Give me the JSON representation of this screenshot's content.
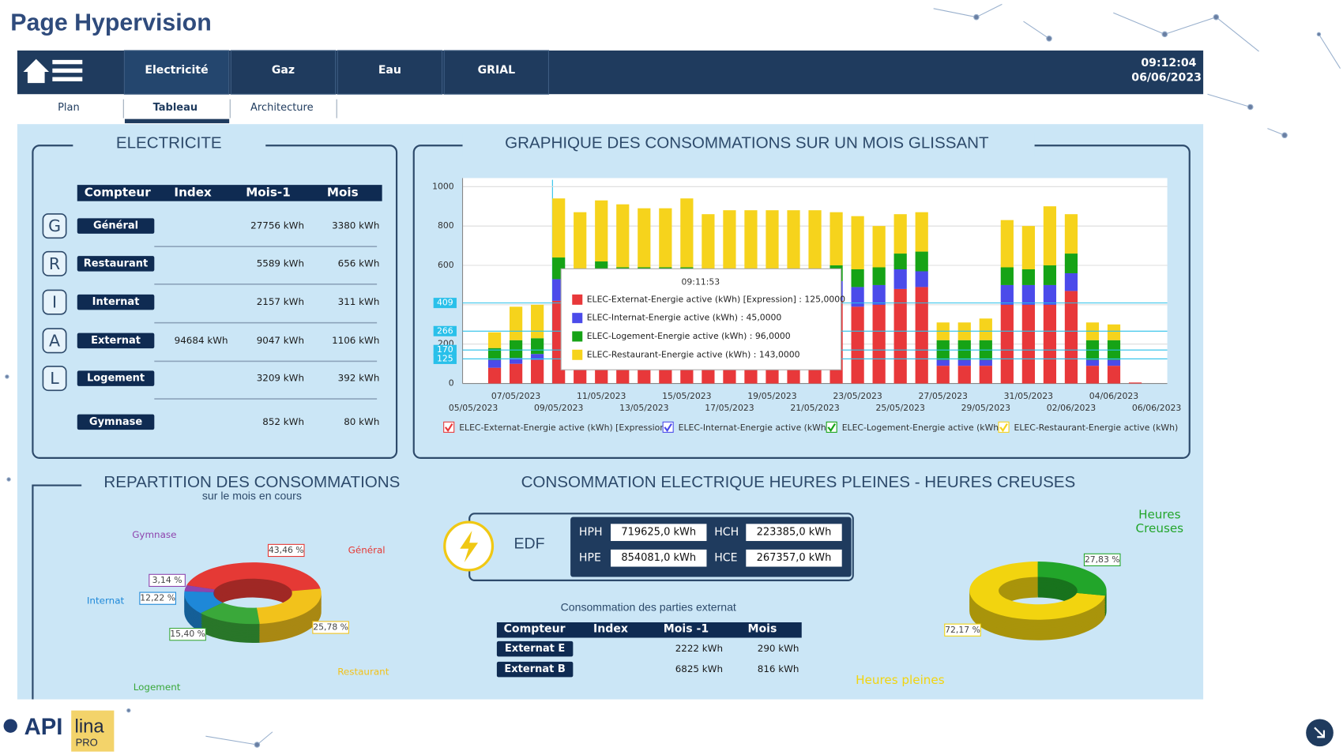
{
  "header": {
    "title": "Page Hypervision"
  },
  "nav": {
    "tabs": [
      "Electricité",
      "Gaz",
      "Eau",
      "GRIAL"
    ],
    "subtabs": [
      "Plan",
      "Tableau",
      "Architecture"
    ],
    "time": "09:12:04",
    "date": "06/06/2023"
  },
  "electricite": {
    "title": "ELECTRICITE",
    "columns": [
      "Compteur",
      "Index",
      "Mois-1",
      "Mois"
    ],
    "rows": [
      {
        "letter": "G",
        "name": "Général",
        "prev": "27756 kWh",
        "cur": "3380 kWh"
      },
      {
        "letter": "R",
        "name": "Restaurant",
        "prev": "5589 kWh",
        "cur": "656 kWh"
      },
      {
        "letter": "I",
        "name": "Internat",
        "prev": "2157 kWh",
        "cur": "311 kWh"
      },
      {
        "letter": "A",
        "name": "Externat",
        "index": "94684 kWh",
        "prev": "9047 kWh",
        "cur": "1106 kWh"
      },
      {
        "letter": "L",
        "name": "Logement",
        "prev": "3209 kWh",
        "cur": "392 kWh"
      },
      {
        "name": "Gymnase",
        "prev": "852 kWh",
        "cur": "80 kWh"
      }
    ]
  },
  "bar_chart": {
    "type": "bar",
    "title": "GRAPHIQUE DES CONSOMMATIONS SUR UN MOIS GLISSANT",
    "categories": [
      "05/05/2023",
      null,
      "07/05/2023",
      null,
      "09/05/2023",
      null,
      "11/05/2023",
      null,
      "13/05/2023",
      null,
      "15/05/2023",
      null,
      "17/05/2023",
      null,
      "19/05/2023",
      null,
      "21/05/2023",
      null,
      "23/05/2023",
      null,
      "25/05/2023",
      null,
      "27/05/2023",
      null,
      "29/05/2023",
      null,
      "31/05/2023",
      null,
      "02/06/2023",
      null,
      "04/06/2023",
      null,
      "06/06/2023"
    ],
    "series": [
      {
        "name": "ELEC-Externat-Energie active (kWh) [Expression]",
        "color": "#e8383a",
        "values": [
          0,
          80,
          100,
          120,
          420,
          400,
          400,
          400,
          400,
          400,
          400,
          400,
          420,
          420,
          420,
          420,
          420,
          420,
          390,
          400,
          480,
          490,
          90,
          90,
          90,
          400,
          400,
          400,
          470,
          90,
          90,
          5,
          0
        ]
      },
      {
        "name": "ELEC-Internat-Energie active (kWh)",
        "color": "#4b4bea",
        "values": [
          0,
          40,
          30,
          30,
          110,
          110,
          110,
          110,
          110,
          110,
          110,
          110,
          100,
          100,
          100,
          100,
          100,
          100,
          100,
          100,
          100,
          80,
          30,
          30,
          30,
          100,
          100,
          100,
          90,
          30,
          30,
          0,
          0
        ]
      },
      {
        "name": "ELEC-Logement-Energie active (kWh)",
        "color": "#16a316",
        "values": [
          0,
          60,
          90,
          80,
          110,
          70,
          110,
          80,
          80,
          80,
          80,
          40,
          60,
          60,
          60,
          60,
          60,
          80,
          90,
          90,
          80,
          100,
          100,
          100,
          100,
          90,
          80,
          100,
          100,
          100,
          100,
          0,
          0
        ]
      },
      {
        "name": "ELEC-Restaurant-Energie active (kWh)",
        "color": "#f6d31c",
        "values": [
          0,
          80,
          170,
          170,
          300,
          290,
          310,
          320,
          300,
          300,
          350,
          310,
          300,
          300,
          300,
          300,
          300,
          270,
          270,
          210,
          200,
          200,
          90,
          90,
          110,
          240,
          220,
          300,
          200,
          90,
          80,
          0,
          0
        ]
      }
    ],
    "ylim": [
      0,
      1000
    ],
    "yticks": [
      0,
      200,
      400,
      600,
      800,
      1000
    ],
    "grid": true,
    "markers": [
      409,
      266,
      170,
      125
    ],
    "tooltip": {
      "time": "09:11:53",
      "lines": [
        "ELEC-Externat-Energie active (kWh) [Expression] : 125,0000",
        "ELEC-Internat-Energie active (kWh) : 45,0000",
        "ELEC-Logement-Energie active (kWh) : 96,0000",
        "ELEC-Restaurant-Energie active (kWh) : 143,0000"
      ]
    }
  },
  "repartition": {
    "type": "pie",
    "title": "REPARTITION DES CONSOMMATIONS",
    "subtitle": "sur le mois en cours",
    "categories": [
      "Général",
      "Restaurant",
      "Logement",
      "Internat",
      "Gymnase"
    ],
    "values": [
      43.46,
      25.78,
      15.4,
      12.22,
      3.14
    ],
    "value_labels": [
      "43,46 %",
      "25,78 %",
      "15,40 %",
      "12,22 %",
      "3,14 %"
    ],
    "colors": [
      "#e53935",
      "#f2c21b",
      "#3aa83a",
      "#1e88d8",
      "#8e44ad"
    ]
  },
  "hphc": {
    "title": "CONSOMMATION ELECTRIQUE HEURES PLEINES - HEURES CREUSES",
    "supplier": "EDF",
    "meters": [
      {
        "label": "HPH",
        "value": "719625,0 kWh"
      },
      {
        "label": "HCH",
        "value": "223385,0 kWh"
      },
      {
        "label": "HPE",
        "value": "854081,0 kWh"
      },
      {
        "label": "HCE",
        "value": "267357,0 kWh"
      }
    ],
    "donut": {
      "type": "pie",
      "categories": [
        "Heures pleines",
        "Heures\nCreuses"
      ],
      "values": [
        72.17,
        27.83
      ],
      "value_labels": [
        "72,17 %",
        "27,83 %"
      ],
      "colors": [
        "#f2d40f",
        "#22a52a"
      ]
    }
  },
  "externat": {
    "title": "Consommation des parties externat",
    "columns": [
      "Compteur",
      "Index",
      "Mois -1",
      "Mois"
    ],
    "rows": [
      {
        "name": "Externat E",
        "prev": "2222 kWh",
        "cur": "290 kWh"
      },
      {
        "name": "Externat B",
        "prev": "6825 kWh",
        "cur": "816 kWh"
      }
    ]
  },
  "footer": {
    "logo": "API",
    "product": "lina",
    "edition": "PRO"
  }
}
